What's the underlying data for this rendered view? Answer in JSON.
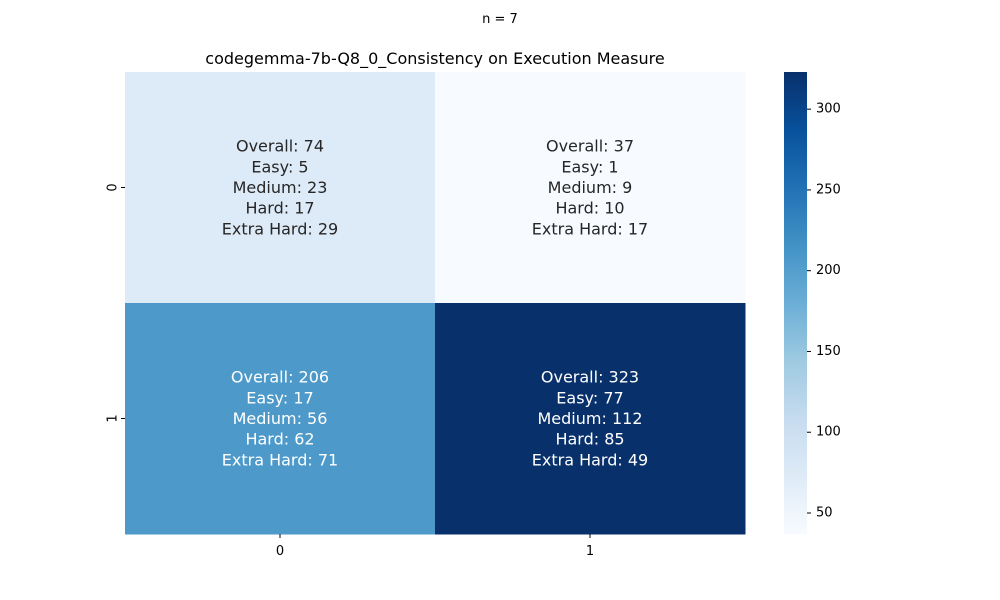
{
  "suptitle": "n = 7",
  "chart_data": {
    "type": "heatmap",
    "title": "codegemma-7b-Q8_0_Consistency on Execution Measure",
    "xlabel": "",
    "ylabel": "",
    "x_categories": [
      "0",
      "1"
    ],
    "y_categories": [
      "0",
      "1"
    ],
    "values": [
      [
        74,
        37
      ],
      [
        206,
        323
      ]
    ],
    "annotations": [
      [
        [
          "Overall: 74",
          "Easy: 5",
          "Medium: 23",
          "Hard: 17",
          "Extra Hard: 29"
        ],
        [
          "Overall: 37",
          "Easy: 1",
          "Medium: 9",
          "Hard: 10",
          "Extra Hard: 17"
        ]
      ],
      [
        [
          "Overall: 206",
          "Easy: 17",
          "Medium: 56",
          "Hard: 62",
          "Extra Hard: 71"
        ],
        [
          "Overall: 323",
          "Easy: 77",
          "Medium: 112",
          "Hard: 85",
          "Extra Hard: 49"
        ]
      ]
    ],
    "colormap": "Blues",
    "colorbar": {
      "range": [
        37,
        323
      ],
      "ticks": [
        50,
        100,
        150,
        200,
        250,
        300
      ]
    }
  }
}
